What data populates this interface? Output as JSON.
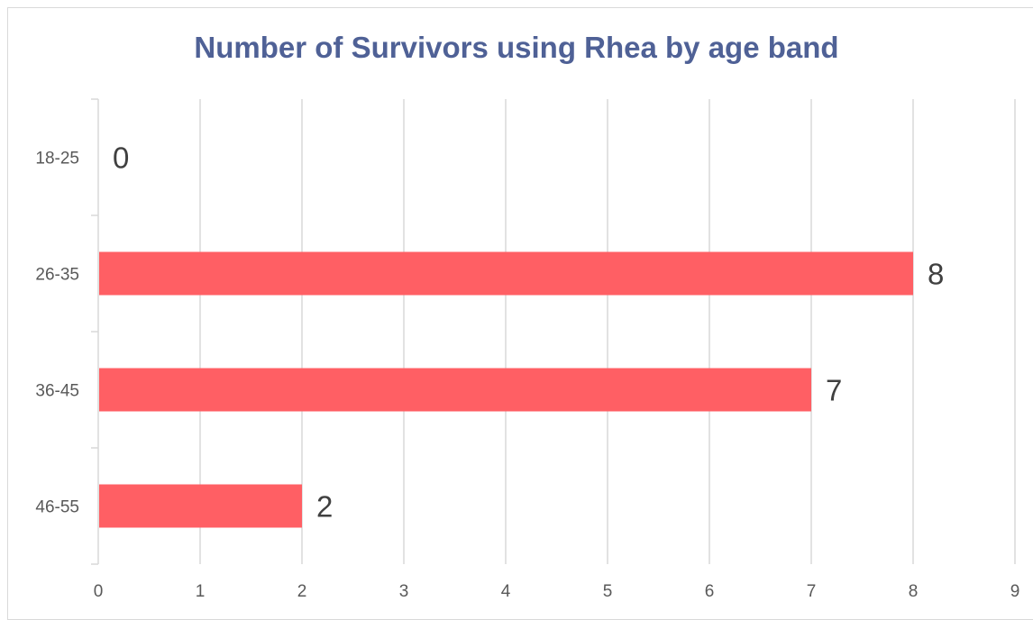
{
  "chart_data": {
    "type": "bar",
    "orientation": "horizontal",
    "title": "Number of Survivors using Rhea by age band",
    "xlabel": "",
    "ylabel": "",
    "categories": [
      "18-25",
      "26-35",
      "36-45",
      "46-55"
    ],
    "values": [
      0,
      8,
      7,
      2
    ],
    "data_labels": [
      "0",
      "8",
      "7",
      "2"
    ],
    "xlim": [
      0,
      9
    ],
    "x_ticks": [
      "0",
      "1",
      "2",
      "3",
      "4",
      "5",
      "6",
      "7",
      "8",
      "9"
    ],
    "grid": "vertical",
    "legend": "none",
    "bar_color": "#ff5f64",
    "title_color": "#4f6196"
  }
}
